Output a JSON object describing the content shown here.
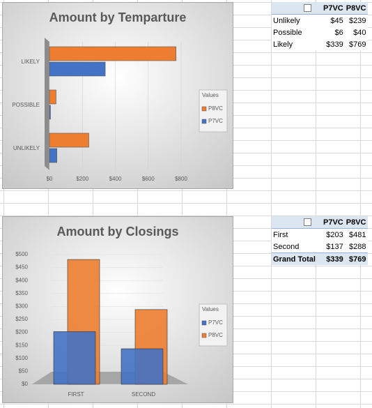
{
  "chart_data": [
    {
      "type": "hbar",
      "title": "Amount by Temparture",
      "categories": [
        "LIKELY",
        "POSSIBLE",
        "UNLIKELY"
      ],
      "series": [
        {
          "name": "P8VC",
          "color": "#ed7d31",
          "values": [
            769,
            40,
            239
          ]
        },
        {
          "name": "P7VC",
          "color": "#4472c4",
          "values": [
            339,
            6,
            45
          ]
        }
      ],
      "xlim": [
        0,
        800
      ],
      "xticks": [
        {
          "value": 0,
          "label": "$0"
        },
        {
          "value": 200,
          "label": "$200"
        },
        {
          "value": 400,
          "label": "$400"
        },
        {
          "value": 600,
          "label": "$600"
        },
        {
          "value": 800,
          "label": "$800"
        }
      ],
      "legend_title": "Values",
      "legend": "right"
    },
    {
      "type": "bar",
      "title": "Amount by Closings",
      "categories": [
        "FIRST",
        "SECOND"
      ],
      "series": [
        {
          "name": "P7VC",
          "color": "#4472c4",
          "values": [
            203,
            137
          ]
        },
        {
          "name": "P8VC",
          "color": "#ed7d31",
          "values": [
            481,
            288
          ]
        }
      ],
      "ylim": [
        0,
        500
      ],
      "yticks": [
        {
          "value": 0,
          "label": "$0"
        },
        {
          "value": 50,
          "label": "$50"
        },
        {
          "value": 100,
          "label": "$100"
        },
        {
          "value": 150,
          "label": "$150"
        },
        {
          "value": 200,
          "label": "$200"
        },
        {
          "value": 250,
          "label": "$250"
        },
        {
          "value": 300,
          "label": "$300"
        },
        {
          "value": 350,
          "label": "$350"
        },
        {
          "value": 400,
          "label": "$400"
        },
        {
          "value": 450,
          "label": "$450"
        },
        {
          "value": 500,
          "label": "$500"
        }
      ],
      "grid": true,
      "legend_title": "Values",
      "legend": "right"
    }
  ],
  "pivot_tables": [
    {
      "headers": [
        "P7VC",
        "P8VC"
      ],
      "rows": [
        [
          "Unlikely",
          "$45",
          "$239"
        ],
        [
          "Possible",
          "$6",
          "$40"
        ],
        [
          "Likely",
          "$339",
          "$769"
        ]
      ]
    },
    {
      "headers": [
        "P7VC",
        "P8VC"
      ],
      "rows": [
        [
          "First",
          "$203",
          "$481"
        ],
        [
          "Second",
          "$137",
          "$288"
        ]
      ],
      "total": [
        "Grand Total",
        "$339",
        "$769"
      ]
    }
  ]
}
